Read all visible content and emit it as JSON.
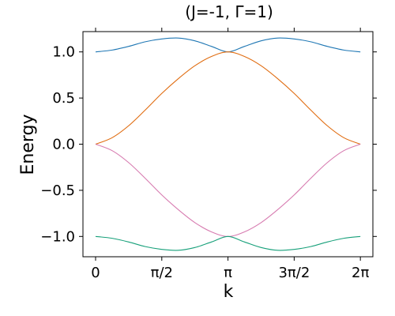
{
  "chart_data": {
    "type": "line",
    "title": "(J=-1, Γ=1)",
    "xlabel": "k",
    "ylabel": "Energy",
    "xlim": [
      -0.3,
      6.58
    ],
    "ylim": [
      -1.22,
      1.22
    ],
    "grid": false,
    "legend": "none",
    "x_ticks": [
      {
        "value": 0,
        "label": "0"
      },
      {
        "value": 1.5708,
        "label": "π/2"
      },
      {
        "value": 3.1416,
        "label": "π"
      },
      {
        "value": 4.7124,
        "label": "3π/2"
      },
      {
        "value": 6.2832,
        "label": "2π"
      }
    ],
    "y_ticks": [
      {
        "value": 1.0,
        "label": "1.0"
      },
      {
        "value": 0.5,
        "label": "0.5"
      },
      {
        "value": 0.0,
        "label": "0.0"
      },
      {
        "value": -0.5,
        "label": "−0.5"
      },
      {
        "value": -1.0,
        "label": "−1.0"
      }
    ],
    "x": [
      0,
      0.3927,
      0.7854,
      1.1781,
      1.5708,
      1.9635,
      2.3562,
      2.7489,
      3.1416,
      3.5343,
      3.927,
      4.3197,
      4.7124,
      5.1051,
      5.4978,
      5.8905,
      6.2832
    ],
    "series": [
      {
        "color": "#1f77b4",
        "values": [
          1.0,
          1.02,
          1.06,
          1.11,
          1.14,
          1.15,
          1.12,
          1.06,
          1.0,
          1.06,
          1.12,
          1.15,
          1.14,
          1.11,
          1.06,
          1.02,
          1.0
        ]
      },
      {
        "color": "#e06c10",
        "values": [
          0.0,
          0.07,
          0.2,
          0.37,
          0.55,
          0.71,
          0.85,
          0.95,
          1.0,
          0.95,
          0.85,
          0.71,
          0.55,
          0.37,
          0.2,
          0.07,
          0.0
        ]
      },
      {
        "color": "#d77bb0",
        "values": [
          0.0,
          -0.07,
          -0.2,
          -0.37,
          -0.55,
          -0.71,
          -0.85,
          -0.95,
          -1.0,
          -0.95,
          -0.85,
          -0.71,
          -0.55,
          -0.37,
          -0.2,
          -0.07,
          0.0
        ]
      },
      {
        "color": "#17a07a",
        "values": [
          -1.0,
          -1.02,
          -1.06,
          -1.11,
          -1.14,
          -1.15,
          -1.12,
          -1.06,
          -1.0,
          -1.06,
          -1.12,
          -1.15,
          -1.14,
          -1.11,
          -1.06,
          -1.02,
          -1.0
        ]
      }
    ]
  }
}
